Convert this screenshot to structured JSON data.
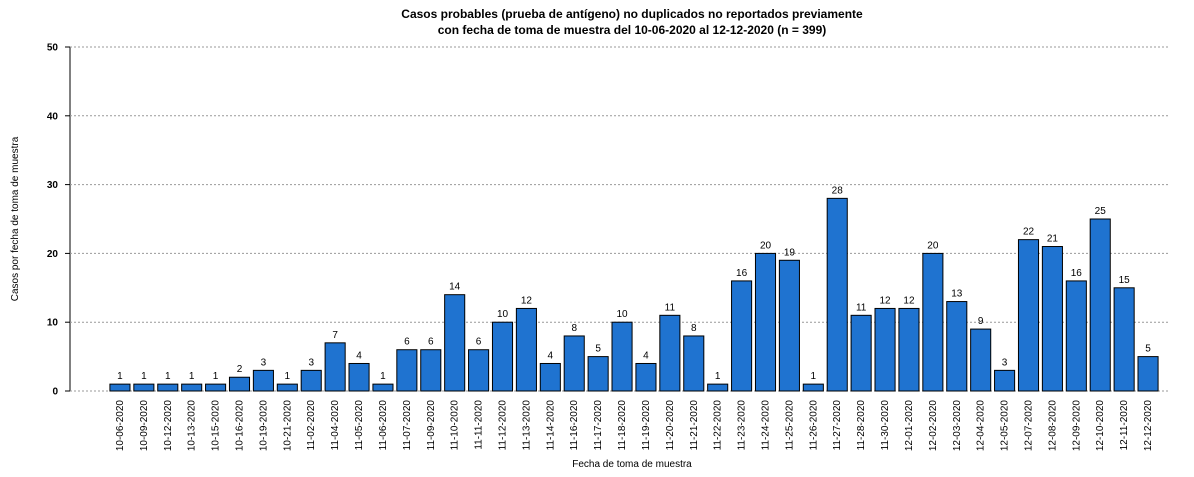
{
  "chart_data": {
    "type": "bar",
    "title": [
      "Casos probables (prueba de antígeno) no duplicados no reportados previamente",
      "con fecha de toma de muestra del 10-06-2020 al 12-12-2020 (n = 399)"
    ],
    "x_label": "Fecha de toma de muestra",
    "y_label": "Casos por fecha de toma de muestra",
    "categories": [
      "10-06-2020",
      "10-09-2020",
      "10-12-2020",
      "10-13-2020",
      "10-15-2020",
      "10-16-2020",
      "10-19-2020",
      "10-21-2020",
      "11-02-2020",
      "11-04-2020",
      "11-05-2020",
      "11-06-2020",
      "11-07-2020",
      "11-09-2020",
      "11-10-2020",
      "11-11-2020",
      "11-12-2020",
      "11-13-2020",
      "11-14-2020",
      "11-16-2020",
      "11-17-2020",
      "11-18-2020",
      "11-19-2020",
      "11-20-2020",
      "11-21-2020",
      "11-22-2020",
      "11-23-2020",
      "11-24-2020",
      "11-25-2020",
      "11-26-2020",
      "11-27-2020",
      "11-28-2020",
      "11-30-2020",
      "12-01-2020",
      "12-02-2020",
      "12-03-2020",
      "12-04-2020",
      "12-05-2020",
      "12-07-2020",
      "12-08-2020",
      "12-09-2020",
      "12-10-2020",
      "12-11-2020",
      "12-12-2020"
    ],
    "values": [
      1,
      1,
      1,
      1,
      1,
      2,
      3,
      1,
      3,
      7,
      4,
      1,
      6,
      6,
      14,
      6,
      10,
      12,
      4,
      8,
      5,
      10,
      4,
      11,
      8,
      1,
      16,
      20,
      19,
      1,
      28,
      11,
      12,
      12,
      20,
      13,
      9,
      3,
      22,
      21,
      16,
      25,
      15,
      5
    ],
    "color": "#1f73d0",
    "ylim": [
      0,
      50
    ],
    "yticks": [
      0,
      10,
      20,
      30,
      40,
      50
    ],
    "grid": true
  }
}
